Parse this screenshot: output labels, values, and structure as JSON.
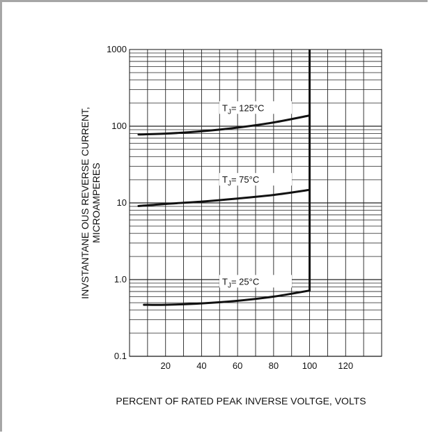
{
  "chart_data": {
    "type": "line",
    "title": "",
    "xlabel": "PERCENT OF RATED PEAK INVERSE VOLTGE, VOLTS",
    "ylabel": [
      "INVSTANTANE OUS REVERSE CURRENT,",
      "MICROAMPERES"
    ],
    "x_scale": "linear",
    "y_scale": "log",
    "xlim": [
      0,
      140
    ],
    "ylim": [
      0.1,
      1000
    ],
    "x_ticks": [
      "20",
      "40",
      "60",
      "80",
      "100",
      "120"
    ],
    "y_ticks": [
      "0.1",
      "1.0",
      "10",
      "100",
      "1000"
    ],
    "grid": true,
    "series": [
      {
        "name": "T_J = 125°C",
        "label": {
          "prefix": "T",
          "sub": "J",
          "text": "= 125°C"
        },
        "x": [
          5,
          20,
          40,
          60,
          80,
          100
        ],
        "y": [
          78,
          80,
          86,
          96,
          112,
          138
        ]
      },
      {
        "name": "T_J = 75°C",
        "label": {
          "prefix": "T",
          "sub": "J",
          "text": "= 75°C"
        },
        "x": [
          5,
          20,
          40,
          60,
          80,
          100
        ],
        "y": [
          9.1,
          9.7,
          10.4,
          11.4,
          12.7,
          14.8
        ]
      },
      {
        "name": "T_J = 25°C",
        "label": {
          "prefix": "T",
          "sub": "J",
          "text": "= 25°C"
        },
        "x": [
          8,
          20,
          40,
          60,
          80,
          100
        ],
        "y": [
          0.47,
          0.47,
          0.49,
          0.53,
          0.6,
          0.72
        ]
      }
    ],
    "breakdown_line": {
      "x": 100,
      "y_from": 0.72,
      "y_to": 1000
    }
  }
}
